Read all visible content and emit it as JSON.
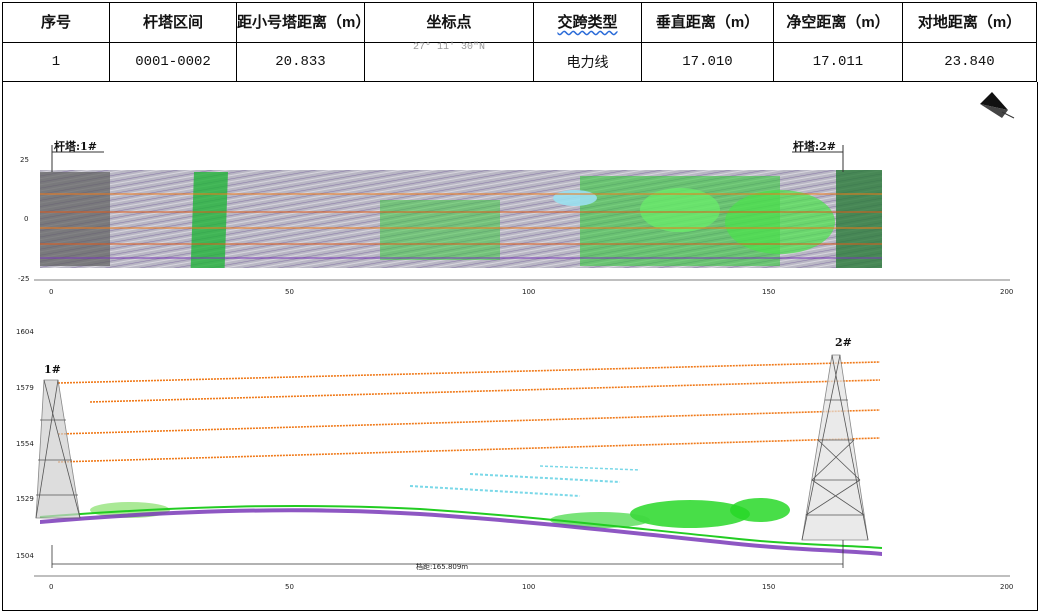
{
  "table": {
    "headers": [
      "序号",
      "杆塔区间",
      "距小号塔距离（m）",
      "坐标点",
      "交跨类型",
      "垂直距离（m）",
      "净空距离（m）",
      "对地距离（m）"
    ],
    "row": [
      "1",
      "0001-0002",
      "20.833",
      "27° 11′ 30″N",
      "电力线",
      "17.010",
      "17.011",
      "23.840"
    ]
  },
  "top_view": {
    "tower_left": "杆塔:1#",
    "tower_right": "杆塔:2#",
    "y_ticks": [
      "25",
      "0",
      "-25"
    ],
    "x_ticks": [
      "0",
      "50",
      "100",
      "150",
      "200"
    ]
  },
  "side_view": {
    "tower_left": "1#",
    "tower_right": "2#",
    "y_ticks": [
      "1604",
      "1579",
      "1554",
      "1529",
      "1504"
    ],
    "x_ticks": [
      "0",
      "50",
      "100",
      "150",
      "200"
    ],
    "span_label": "档距:165.809m"
  },
  "colors": {
    "conductor": "#f07a1a",
    "vegetation": "#22cc22",
    "crossing": "#7ad8e8",
    "ground": "#7a3ab8",
    "tower": "#555555"
  },
  "icons": [
    "north-arrow-icon"
  ]
}
